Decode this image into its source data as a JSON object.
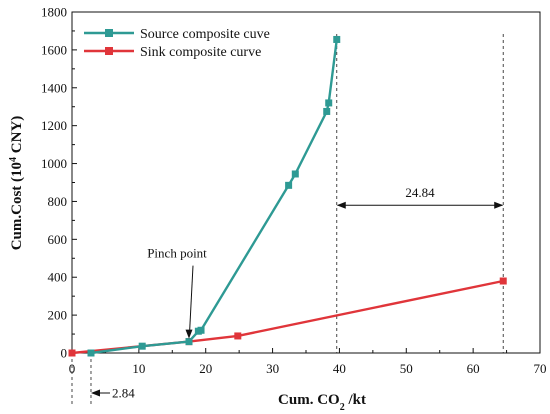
{
  "chart_data": {
    "type": "line",
    "xlabel": "Cum. CO",
    "xlabel_sub": "2",
    "xlabel_tail": " /kt",
    "ylabel": "Cum.Cost (10",
    "ylabel_sup": "4",
    "ylabel_tail": " CNY)",
    "xlim": [
      0,
      70
    ],
    "ylim": [
      0,
      1800
    ],
    "xticks": [
      0,
      10,
      20,
      30,
      40,
      50,
      60,
      70
    ],
    "yticks": [
      0,
      200,
      400,
      600,
      800,
      1000,
      1200,
      1400,
      1600,
      1800
    ],
    "grid": false,
    "legend_position": "top-left",
    "series": [
      {
        "name": "Source composite cuve",
        "color": "#2e9a94",
        "marker": "square",
        "points": [
          [
            2.84,
            0
          ],
          [
            10.5,
            36
          ],
          [
            17.5,
            60
          ],
          [
            18.9,
            115
          ],
          [
            19.3,
            120
          ],
          [
            32.4,
            885
          ],
          [
            33.4,
            945
          ],
          [
            38.1,
            1275
          ],
          [
            38.4,
            1320
          ],
          [
            39.6,
            1655
          ]
        ]
      },
      {
        "name": "Sink composite curve",
        "color": "#e0353a",
        "marker": "square",
        "points": [
          [
            0,
            0
          ],
          [
            17.5,
            60
          ],
          [
            24.8,
            90
          ],
          [
            64.5,
            380
          ]
        ]
      }
    ],
    "annotations": [
      {
        "text": "Pinch point",
        "x": 17.5,
        "y": 60
      },
      {
        "text": "24.84",
        "x_from": 39.6,
        "x_to": 64.5,
        "y": 780
      },
      {
        "text": "2.84",
        "x_from": 0,
        "x_to": 2.84
      }
    ],
    "vlines": [
      0,
      2.84,
      39.6,
      64.5
    ]
  }
}
